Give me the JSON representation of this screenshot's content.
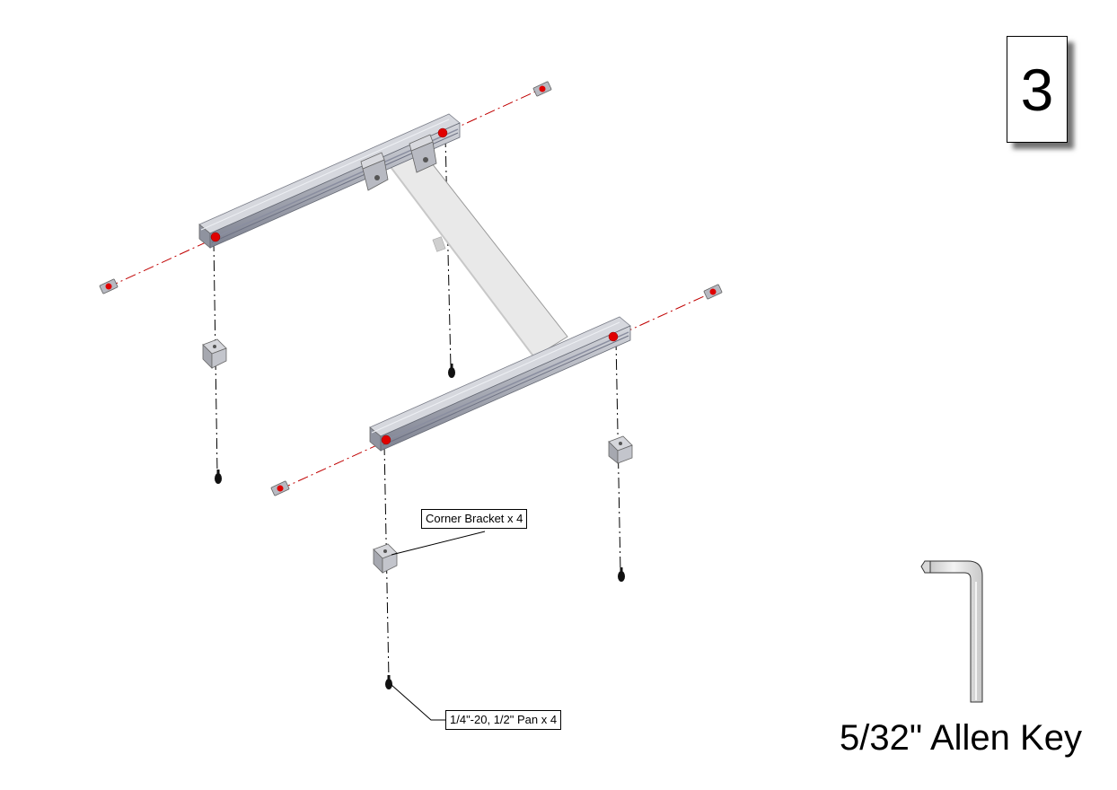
{
  "step": {
    "number": "3"
  },
  "callouts": {
    "corner_bracket": "Corner Bracket x 4",
    "screw": "1/4\"-20, 1/2\" Pan x 4"
  },
  "tool": {
    "label": "5/32\" Allen Key"
  },
  "colors": {
    "extrusion": "#b9bcc4",
    "extrusion_dark": "#7e8291",
    "crossbar": "#e8e8e8",
    "marker": "#e00000",
    "centerline": "#c00000"
  }
}
